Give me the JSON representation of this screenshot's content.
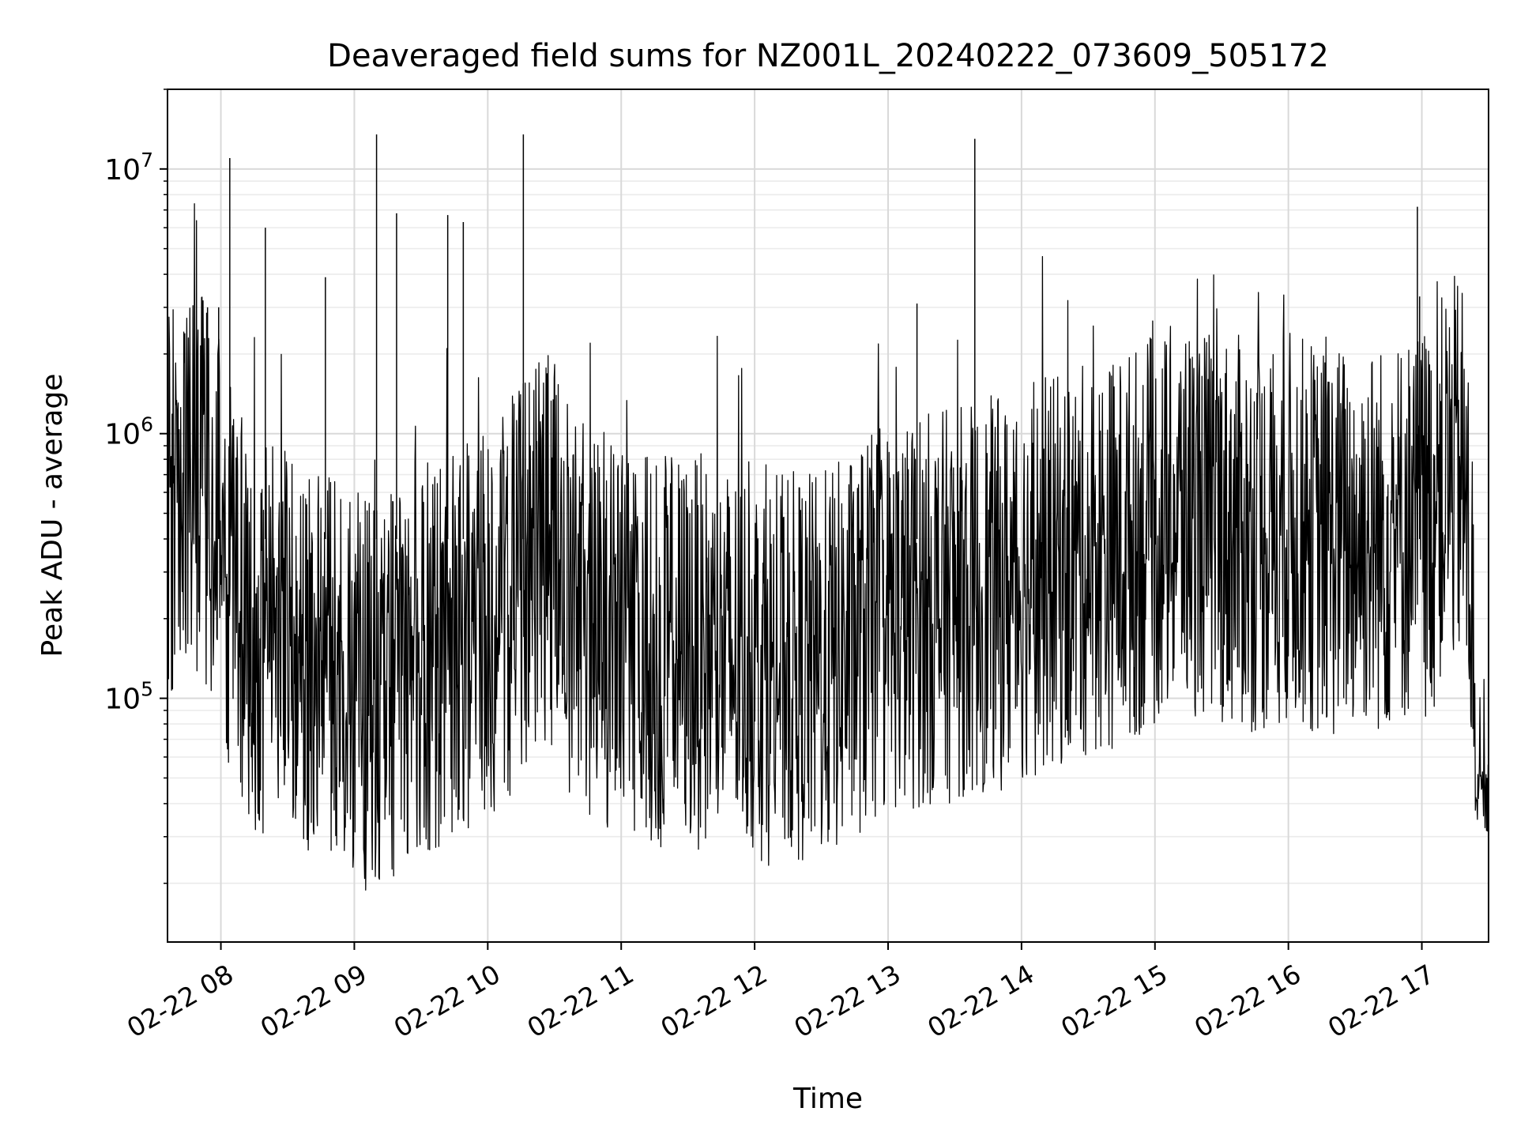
{
  "chart_data": {
    "type": "line",
    "title": "Deaveraged field sums for NZ001L_20240222_073609_505172",
    "xlabel": "Time",
    "ylabel": "Peak ADU - average",
    "x_range": [
      "2024-02-22 07:36",
      "2024-02-22 17:30"
    ],
    "x_ticks": [
      {
        "time": "2024-02-22 08:00",
        "label": "02-22 08"
      },
      {
        "time": "2024-02-22 09:00",
        "label": "02-22 09"
      },
      {
        "time": "2024-02-22 10:00",
        "label": "02-22 10"
      },
      {
        "time": "2024-02-22 11:00",
        "label": "02-22 11"
      },
      {
        "time": "2024-02-22 12:00",
        "label": "02-22 12"
      },
      {
        "time": "2024-02-22 13:00",
        "label": "02-22 13"
      },
      {
        "time": "2024-02-22 14:00",
        "label": "02-22 14"
      },
      {
        "time": "2024-02-22 15:00",
        "label": "02-22 15"
      },
      {
        "time": "2024-02-22 16:00",
        "label": "02-22 16"
      },
      {
        "time": "2024-02-22 17:00",
        "label": "02-22 17"
      }
    ],
    "y_scale": "log",
    "ylim": [
      12000,
      20000000
    ],
    "y_ticks": [
      {
        "value": 100000,
        "base": "10",
        "exp": "5"
      },
      {
        "value": 1000000,
        "base": "10",
        "exp": "6"
      },
      {
        "value": 10000000,
        "base": "10",
        "exp": "7"
      }
    ],
    "grid": true,
    "line_color": "#000000",
    "series": [
      {
        "time": [
          "2024-02-22 07:36",
          "2024-02-22 07:42",
          "2024-02-22 07:48",
          "2024-02-22 07:54",
          "2024-02-22 08:00",
          "2024-02-22 08:06",
          "2024-02-22 08:12",
          "2024-02-22 08:18",
          "2024-02-22 08:24",
          "2024-02-22 08:30",
          "2024-02-22 08:36",
          "2024-02-22 08:42",
          "2024-02-22 08:48",
          "2024-02-22 08:54",
          "2024-02-22 09:00",
          "2024-02-22 09:06",
          "2024-02-22 09:12",
          "2024-02-22 09:18",
          "2024-02-22 09:24",
          "2024-02-22 09:30",
          "2024-02-22 09:36",
          "2024-02-22 09:42",
          "2024-02-22 09:48",
          "2024-02-22 09:54",
          "2024-02-22 10:00",
          "2024-02-22 10:06",
          "2024-02-22 10:12",
          "2024-02-22 10:18",
          "2024-02-22 10:24",
          "2024-02-22 10:30",
          "2024-02-22 10:36",
          "2024-02-22 10:42",
          "2024-02-22 10:48",
          "2024-02-22 10:54",
          "2024-02-22 11:00",
          "2024-02-22 11:06",
          "2024-02-22 11:12",
          "2024-02-22 11:18",
          "2024-02-22 11:24",
          "2024-02-22 11:30",
          "2024-02-22 11:36",
          "2024-02-22 11:42",
          "2024-02-22 11:48",
          "2024-02-22 11:54",
          "2024-02-22 12:00",
          "2024-02-22 12:06",
          "2024-02-22 12:12",
          "2024-02-22 12:18",
          "2024-02-22 12:24",
          "2024-02-22 12:30",
          "2024-02-22 12:36",
          "2024-02-22 12:42",
          "2024-02-22 12:48",
          "2024-02-22 12:54",
          "2024-02-22 13:00",
          "2024-02-22 13:06",
          "2024-02-22 13:12",
          "2024-02-22 13:18",
          "2024-02-22 13:24",
          "2024-02-22 13:30",
          "2024-02-22 13:36",
          "2024-02-22 13:42",
          "2024-02-22 13:48",
          "2024-02-22 13:54",
          "2024-02-22 14:00",
          "2024-02-22 14:06",
          "2024-02-22 14:12",
          "2024-02-22 14:18",
          "2024-02-22 14:24",
          "2024-02-22 14:30",
          "2024-02-22 14:36",
          "2024-02-22 14:42",
          "2024-02-22 14:48",
          "2024-02-22 14:54",
          "2024-02-22 15:00",
          "2024-02-22 15:06",
          "2024-02-22 15:12",
          "2024-02-22 15:18",
          "2024-02-22 15:24",
          "2024-02-22 15:30",
          "2024-02-22 15:36",
          "2024-02-22 15:42",
          "2024-02-22 15:48",
          "2024-02-22 15:54",
          "2024-02-22 16:00",
          "2024-02-22 16:06",
          "2024-02-22 16:12",
          "2024-02-22 16:18",
          "2024-02-22 16:24",
          "2024-02-22 16:30",
          "2024-02-22 16:36",
          "2024-02-22 16:42",
          "2024-02-22 16:48",
          "2024-02-22 16:54",
          "2024-02-22 17:00",
          "2024-02-22 17:06",
          "2024-02-22 17:12",
          "2024-02-22 17:18",
          "2024-02-22 17:24",
          "2024-02-22 17:30"
        ],
        "values": [
          550000,
          700000,
          650000,
          600000,
          400000,
          250000,
          180000,
          150000,
          200000,
          180000,
          130000,
          120000,
          150000,
          130000,
          120000,
          100000,
          110000,
          120000,
          130000,
          140000,
          150000,
          160000,
          170000,
          180000,
          190000,
          220000,
          250000,
          300000,
          400000,
          350000,
          250000,
          200000,
          180000,
          170000,
          160000,
          160000,
          160000,
          150000,
          150000,
          150000,
          150000,
          140000,
          140000,
          140000,
          140000,
          130000,
          130000,
          130000,
          130000,
          130000,
          140000,
          150000,
          170000,
          180000,
          200000,
          200000,
          210000,
          220000,
          220000,
          230000,
          230000,
          240000,
          250000,
          250000,
          270000,
          280000,
          300000,
          300000,
          320000,
          330000,
          350000,
          360000,
          380000,
          400000,
          420000,
          450000,
          480000,
          480000,
          450000,
          450000,
          420000,
          420000,
          400000,
          420000,
          450000,
          420000,
          400000,
          380000,
          400000,
          400000,
          420000,
          400000,
          420000,
          450000,
          450000,
          500000,
          700000,
          700000,
          45000,
          40000
        ]
      }
    ],
    "spikes": [
      {
        "time": "2024-02-22 07:54",
        "value": 3000000
      },
      {
        "time": "2024-02-22 07:59",
        "value": 3000000
      },
      {
        "time": "2024-02-22 08:04",
        "value": 11000000
      },
      {
        "time": "2024-02-22 08:20",
        "value": 6000000
      },
      {
        "time": "2024-02-22 08:47",
        "value": 3900000
      },
      {
        "time": "2024-02-22 09:10",
        "value": 13500000
      },
      {
        "time": "2024-02-22 09:19",
        "value": 6800000
      },
      {
        "time": "2024-02-22 09:42",
        "value": 6700000
      },
      {
        "time": "2024-02-22 09:49",
        "value": 6300000
      },
      {
        "time": "2024-02-22 10:16",
        "value": 13500000
      },
      {
        "time": "2024-02-22 13:13",
        "value": 3100000
      },
      {
        "time": "2024-02-22 13:39",
        "value": 13000000
      },
      {
        "time": "2024-02-22 16:58",
        "value": 7200000
      },
      {
        "time": "2024-02-22 16:59",
        "value": 3300000
      }
    ]
  }
}
